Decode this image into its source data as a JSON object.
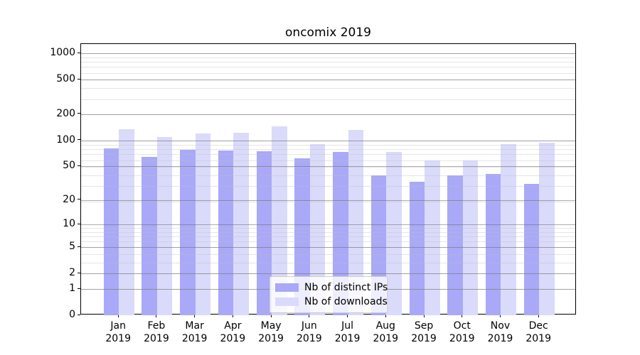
{
  "title": "oncomix 2019",
  "colors": {
    "distinct_ips_bar": "#a9a9f8",
    "downloads_bar": "#dadafb",
    "major_grid": "#acacac",
    "minor_grid": "#e5e5e5",
    "axis_spine": "#000000",
    "legend_border": "#cccccc"
  },
  "legend": {
    "items": [
      {
        "label": "Nb of distinct IPs"
      },
      {
        "label": "Nb of downloads"
      }
    ]
  },
  "chart_data": {
    "type": "bar",
    "title": "oncomix 2019",
    "categories": [
      "Jan 2019",
      "Feb 2019",
      "Mar 2019",
      "Apr 2019",
      "May 2019",
      "Jun 2019",
      "Jul 2019",
      "Aug 2019",
      "Sep 2019",
      "Oct 2019",
      "Nov 2019",
      "Dec 2019"
    ],
    "series": [
      {
        "name": "Nb of distinct IPs",
        "color": "#a9a9f8",
        "values": [
          80,
          64,
          78,
          76,
          75,
          62,
          74,
          39,
          33,
          39,
          41,
          31
        ]
      },
      {
        "name": "Nb of downloads",
        "color": "#dadafb",
        "values": [
          135,
          109,
          120,
          123,
          145,
          90,
          131,
          74,
          59,
          59,
          91,
          94
        ]
      }
    ],
    "xlabel": "",
    "ylabel": "",
    "yscale": "log1p",
    "yticks": [
      1000,
      500,
      200,
      100,
      50,
      20,
      10,
      5,
      2,
      1,
      0
    ],
    "ylim": [
      0,
      1280
    ],
    "grid": true,
    "legend_position": "lower-center"
  }
}
